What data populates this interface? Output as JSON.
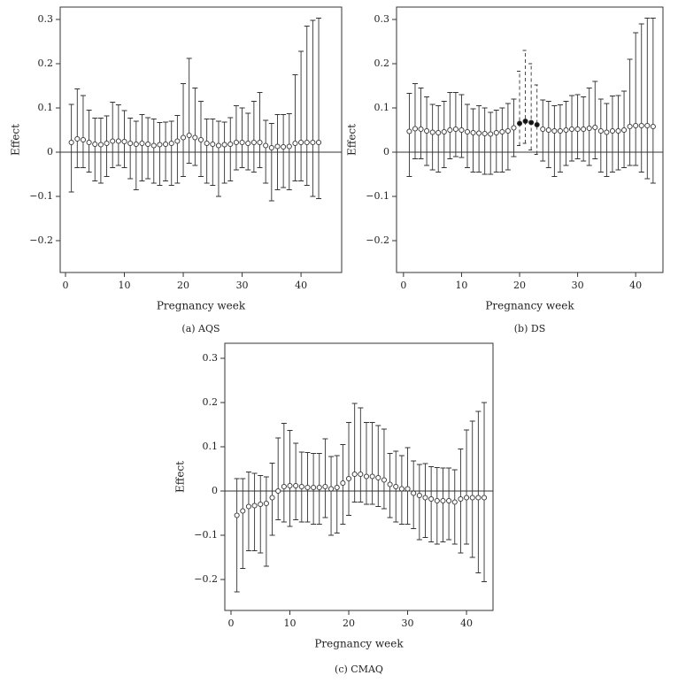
{
  "chart_data": [
    {
      "type": "errorbar",
      "caption": "(a)  AQS",
      "x_label": "Pregnancy week",
      "y_label": "Effect",
      "xlim": [
        -0.9,
        46.9
      ],
      "ylim": [
        -0.272,
        0.328
      ],
      "xticks": [
        0,
        10,
        20,
        30,
        40
      ],
      "yticks": [
        {
          "value": -0.2,
          "label": "−0.2"
        },
        {
          "value": -0.1,
          "label": "−0.1"
        },
        0,
        0.1,
        0.2,
        0.3
      ],
      "hline": 0,
      "series": [
        {
          "marker": "open",
          "line_style": "solid",
          "x": [
            1,
            2,
            3,
            4,
            5,
            6,
            7,
            8,
            9,
            10,
            11,
            12,
            13,
            14,
            15,
            16,
            17,
            18,
            19,
            20,
            21,
            22,
            23,
            24,
            25,
            26,
            27,
            28,
            29,
            30,
            31,
            32,
            33,
            34,
            35,
            36,
            37,
            38,
            39,
            40,
            41,
            42,
            43
          ],
          "values": [
            0.022,
            0.03,
            0.028,
            0.022,
            0.018,
            0.017,
            0.02,
            0.025,
            0.025,
            0.024,
            0.02,
            0.018,
            0.02,
            0.018,
            0.015,
            0.017,
            0.018,
            0.02,
            0.025,
            0.033,
            0.038,
            0.033,
            0.028,
            0.02,
            0.018,
            0.015,
            0.017,
            0.018,
            0.022,
            0.022,
            0.02,
            0.022,
            0.022,
            0.015,
            0.01,
            0.013,
            0.012,
            0.013,
            0.02,
            0.022,
            0.022,
            0.022,
            0.022
          ],
          "upper": [
            0.108,
            0.143,
            0.128,
            0.095,
            0.077,
            0.077,
            0.082,
            0.113,
            0.107,
            0.094,
            0.077,
            0.07,
            0.085,
            0.078,
            0.075,
            0.067,
            0.068,
            0.07,
            0.083,
            0.155,
            0.212,
            0.145,
            0.115,
            0.075,
            0.075,
            0.07,
            0.068,
            0.078,
            0.105,
            0.1,
            0.088,
            0.115,
            0.135,
            0.072,
            0.065,
            0.085,
            0.085,
            0.087,
            0.175,
            0.228,
            0.285,
            0.298,
            0.303
          ],
          "lower": [
            -0.09,
            -0.035,
            -0.035,
            -0.045,
            -0.065,
            -0.07,
            -0.055,
            -0.035,
            -0.03,
            -0.035,
            -0.06,
            -0.085,
            -0.065,
            -0.06,
            -0.07,
            -0.075,
            -0.065,
            -0.075,
            -0.07,
            -0.055,
            -0.025,
            -0.03,
            -0.055,
            -0.07,
            -0.075,
            -0.1,
            -0.07,
            -0.065,
            -0.04,
            -0.035,
            -0.04,
            -0.045,
            -0.035,
            -0.07,
            -0.11,
            -0.085,
            -0.08,
            -0.085,
            -0.065,
            -0.065,
            -0.075,
            -0.1,
            -0.105
          ]
        }
      ]
    },
    {
      "type": "errorbar",
      "caption": "(b)  DS",
      "x_label": "Pregnancy week",
      "y_label": "Effect",
      "xlim": [
        -1.2,
        44.7
      ],
      "ylim": [
        -0.272,
        0.328
      ],
      "xticks": [
        0,
        10,
        20,
        30,
        40
      ],
      "yticks": [
        {
          "value": -0.2,
          "label": "−0.2"
        },
        {
          "value": -0.1,
          "label": "−0.1"
        },
        0,
        0.1,
        0.2,
        0.3
      ],
      "hline": 0,
      "series": [
        {
          "marker": "open",
          "line_style": "solid",
          "x": [
            1,
            2,
            3,
            4,
            5,
            6,
            7,
            8,
            9,
            10,
            11,
            12,
            13,
            14,
            15,
            16,
            17,
            18,
            19,
            24,
            25,
            26,
            27,
            28,
            29,
            30,
            31,
            32,
            33,
            34,
            35,
            36,
            37,
            38,
            39,
            40,
            41,
            42,
            43
          ],
          "values": [
            0.047,
            0.053,
            0.052,
            0.048,
            0.045,
            0.044,
            0.046,
            0.05,
            0.052,
            0.05,
            0.046,
            0.044,
            0.043,
            0.042,
            0.041,
            0.044,
            0.046,
            0.048,
            0.055,
            0.052,
            0.05,
            0.048,
            0.048,
            0.05,
            0.052,
            0.052,
            0.052,
            0.054,
            0.056,
            0.048,
            0.045,
            0.048,
            0.048,
            0.05,
            0.058,
            0.06,
            0.06,
            0.06,
            0.058
          ],
          "upper": [
            0.133,
            0.155,
            0.145,
            0.125,
            0.108,
            0.105,
            0.115,
            0.135,
            0.135,
            0.13,
            0.108,
            0.098,
            0.105,
            0.1,
            0.09,
            0.095,
            0.1,
            0.11,
            0.12,
            0.118,
            0.115,
            0.105,
            0.107,
            0.115,
            0.128,
            0.13,
            0.125,
            0.145,
            0.16,
            0.12,
            0.11,
            0.127,
            0.128,
            0.138,
            0.21,
            0.27,
            0.29,
            0.303,
            0.303
          ],
          "lower": [
            -0.055,
            -0.015,
            -0.015,
            -0.03,
            -0.04,
            -0.045,
            -0.035,
            -0.015,
            -0.01,
            -0.012,
            -0.035,
            -0.045,
            -0.045,
            -0.05,
            -0.05,
            -0.045,
            -0.045,
            -0.04,
            -0.01,
            -0.02,
            -0.035,
            -0.055,
            -0.045,
            -0.03,
            -0.02,
            -0.015,
            -0.02,
            -0.03,
            -0.015,
            -0.045,
            -0.055,
            -0.045,
            -0.04,
            -0.035,
            -0.03,
            -0.03,
            -0.045,
            -0.06,
            -0.07
          ]
        },
        {
          "marker": "filled",
          "line_style": "dashed",
          "x": [
            20,
            21,
            22,
            23
          ],
          "values": [
            0.065,
            0.07,
            0.067,
            0.062
          ],
          "upper": [
            0.183,
            0.23,
            0.2,
            0.152
          ],
          "lower": [
            0.015,
            0.02,
            0.005,
            -0.005
          ]
        }
      ]
    },
    {
      "type": "errorbar",
      "caption": "(c)  CMAQ",
      "x_label": "Pregnancy week",
      "y_label": "Effect",
      "xlim": [
        -1.05,
        44.5
      ],
      "ylim": [
        -0.27,
        0.334
      ],
      "xticks": [
        0,
        10,
        20,
        30,
        40
      ],
      "yticks": [
        {
          "value": -0.2,
          "label": "−0.2"
        },
        {
          "value": -0.1,
          "label": "−0.1"
        },
        0,
        0.1,
        0.2,
        0.3
      ],
      "hline": 0,
      "series": [
        {
          "marker": "open",
          "line_style": "solid",
          "x": [
            1,
            2,
            3,
            4,
            5,
            6,
            7,
            8,
            9,
            10,
            11,
            12,
            13,
            14,
            15,
            16,
            17,
            18,
            19,
            20,
            21,
            22,
            23,
            24,
            25,
            26,
            27,
            28,
            29,
            30,
            31,
            32,
            33,
            34,
            35,
            36,
            37,
            38,
            39,
            40,
            41,
            42,
            43
          ],
          "values": [
            -0.055,
            -0.045,
            -0.035,
            -0.033,
            -0.03,
            -0.028,
            -0.015,
            0.0,
            0.01,
            0.012,
            0.012,
            0.01,
            0.008,
            0.008,
            0.008,
            0.01,
            0.005,
            0.008,
            0.018,
            0.028,
            0.038,
            0.038,
            0.033,
            0.033,
            0.03,
            0.025,
            0.015,
            0.01,
            0.005,
            0.005,
            -0.005,
            -0.01,
            -0.015,
            -0.018,
            -0.022,
            -0.022,
            -0.022,
            -0.025,
            -0.018,
            -0.015,
            -0.015,
            -0.015,
            -0.015
          ],
          "upper": [
            0.028,
            0.028,
            0.043,
            0.04,
            0.035,
            0.032,
            0.063,
            0.12,
            0.153,
            0.137,
            0.108,
            0.088,
            0.087,
            0.085,
            0.085,
            0.118,
            0.078,
            0.08,
            0.105,
            0.155,
            0.198,
            0.188,
            0.155,
            0.155,
            0.148,
            0.14,
            0.085,
            0.09,
            0.08,
            0.098,
            0.068,
            0.06,
            0.062,
            0.055,
            0.053,
            0.052,
            0.052,
            0.048,
            0.095,
            0.138,
            0.158,
            0.18,
            0.2
          ],
          "lower": [
            -0.228,
            -0.175,
            -0.135,
            -0.135,
            -0.14,
            -0.17,
            -0.1,
            -0.065,
            -0.07,
            -0.08,
            -0.065,
            -0.07,
            -0.07,
            -0.075,
            -0.075,
            -0.06,
            -0.1,
            -0.095,
            -0.075,
            -0.055,
            -0.025,
            -0.025,
            -0.03,
            -0.03,
            -0.035,
            -0.04,
            -0.06,
            -0.07,
            -0.075,
            -0.075,
            -0.085,
            -0.11,
            -0.105,
            -0.115,
            -0.12,
            -0.115,
            -0.11,
            -0.12,
            -0.14,
            -0.12,
            -0.15,
            -0.185,
            -0.205
          ]
        }
      ]
    }
  ]
}
